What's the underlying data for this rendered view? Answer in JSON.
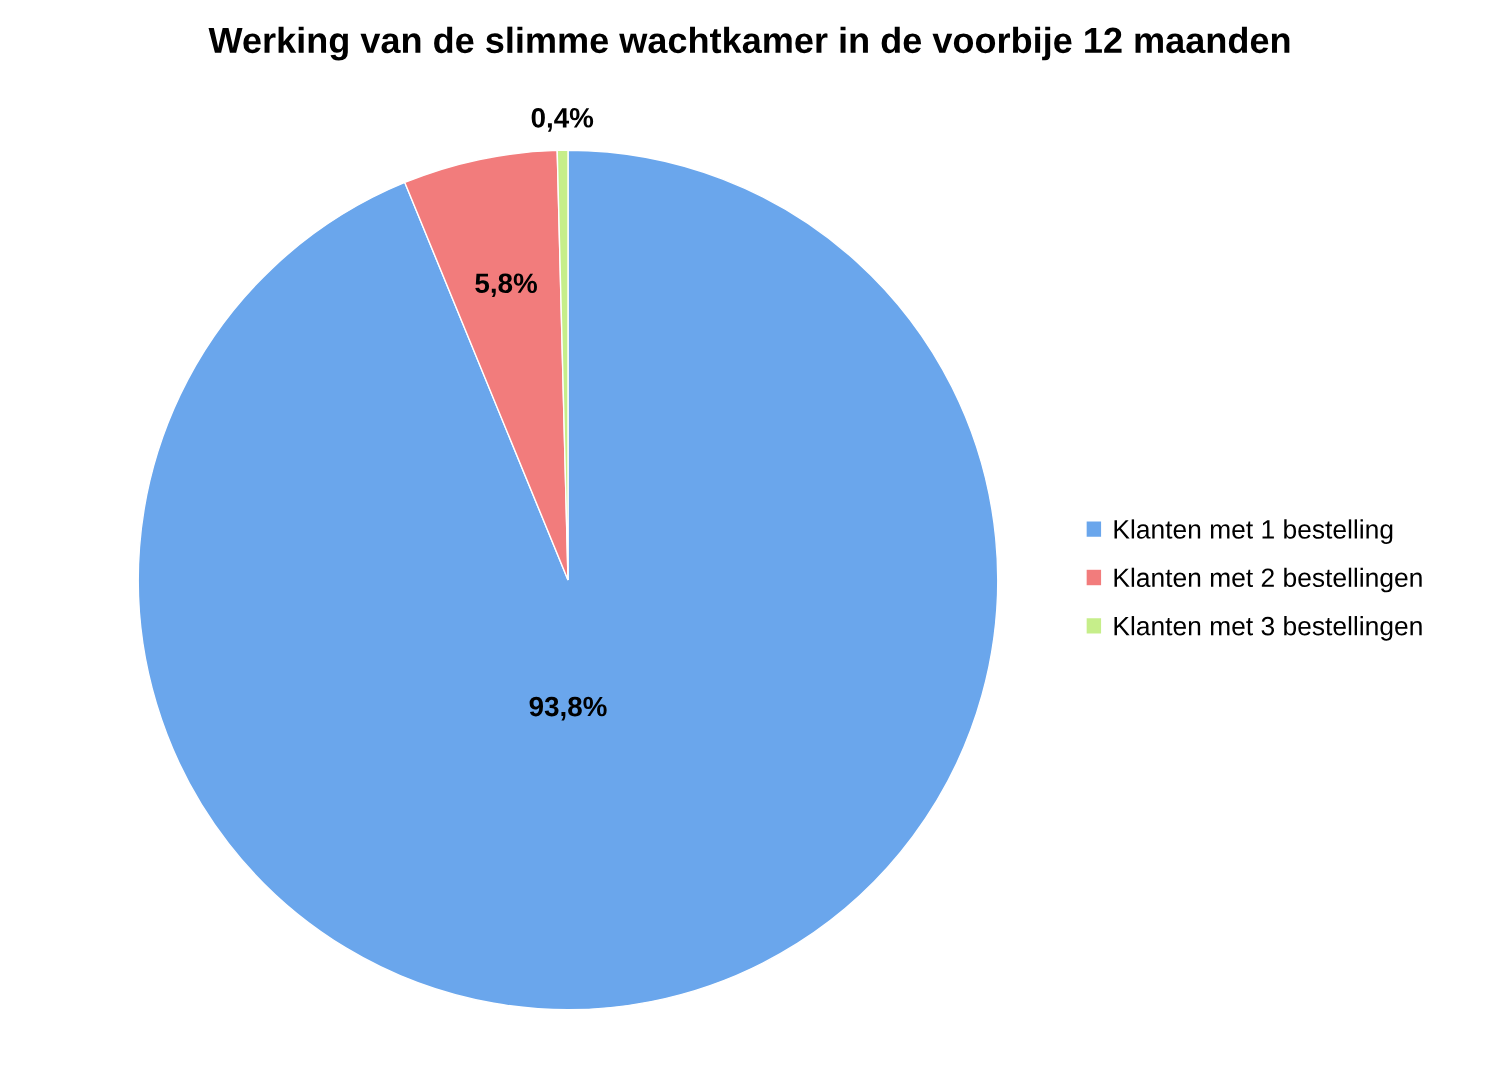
{
  "chart_data": {
    "type": "pie",
    "title": "Werking van de slimme wachtkamer in de voorbije 12 maanden",
    "categories": [
      "Klanten met 1 bestelling",
      "Klanten met 2 bestellingen",
      "Klanten met 3 bestellingen"
    ],
    "values": [
      93.8,
      5.8,
      0.4
    ],
    "value_labels": [
      "93,8%",
      "5,8%",
      "0,4%"
    ],
    "colors": [
      "#6aa6ec",
      "#f27c7c",
      "#c6ee8a"
    ],
    "legend": "right"
  }
}
